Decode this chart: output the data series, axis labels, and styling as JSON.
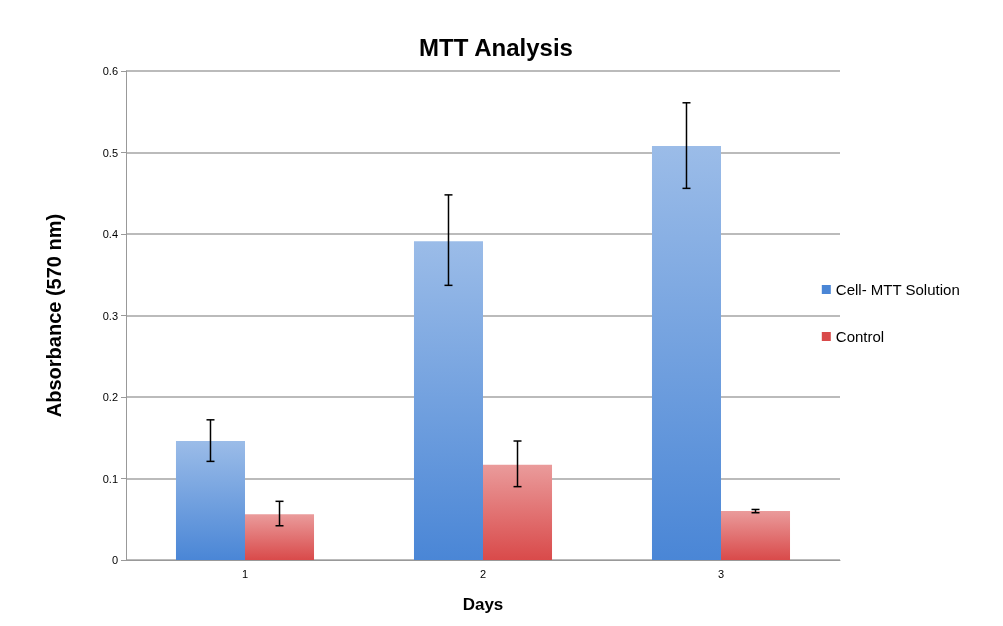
{
  "chart_data": {
    "type": "bar",
    "title": "MTT Analysis",
    "xlabel": "Days",
    "ylabel": "Absorbance (570 nm)",
    "categories": [
      "1",
      "2",
      "3"
    ],
    "series": [
      {
        "name": "Cell- MTT Solution",
        "color": "#4a86d6",
        "values": [
          0.146,
          0.391,
          0.508
        ],
        "errors": [
          [
            0.121,
            0.172
          ],
          [
            0.337,
            0.448
          ],
          [
            0.456,
            0.561
          ]
        ]
      },
      {
        "name": "Control",
        "color": "#d94a4a",
        "values": [
          0.056,
          0.117,
          0.06
        ],
        "errors": [
          [
            0.042,
            0.072
          ],
          [
            0.09,
            0.146
          ],
          [
            0.058,
            0.062
          ]
        ]
      }
    ],
    "ylim": [
      0,
      0.6
    ],
    "yticks": [
      0,
      0.1,
      0.2,
      0.3,
      0.4,
      0.5,
      0.6
    ],
    "grid": "y",
    "legend": "right"
  }
}
